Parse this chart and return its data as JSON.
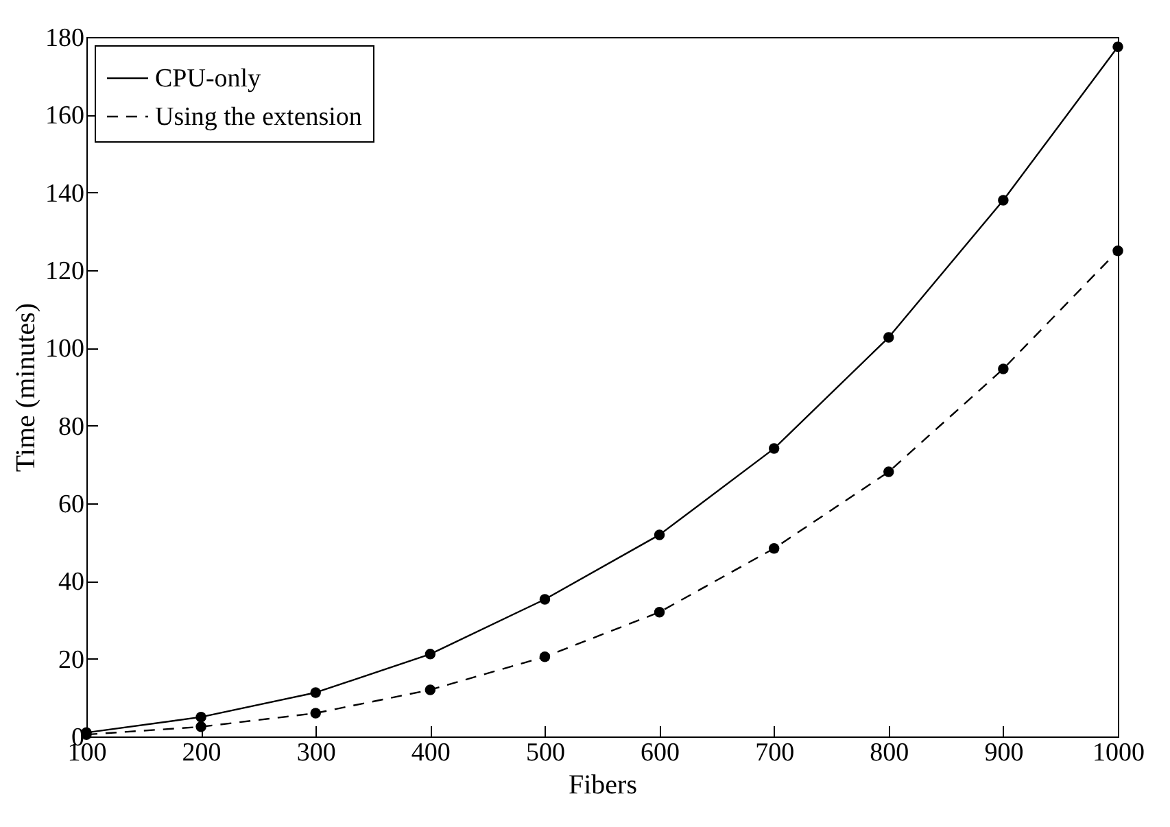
{
  "chart_data": {
    "type": "line",
    "xlabel": "Fibers",
    "ylabel": "Time (minutes)",
    "x": [
      100,
      200,
      300,
      400,
      500,
      600,
      700,
      800,
      900,
      1000
    ],
    "series": [
      {
        "name": "CPU-only",
        "color": "#000000",
        "line_style": "solid",
        "values": [
          1,
          5,
          11.3,
          21.2,
          35.3,
          51.9,
          74.1,
          102.7,
          138,
          177.5
        ]
      },
      {
        "name": "Using the extension",
        "color": "#000000",
        "line_style": "dashed",
        "values": [
          0.5,
          2.5,
          6,
          12,
          20.5,
          32,
          48.4,
          68.1,
          94.6,
          125
        ]
      }
    ],
    "xlim": [
      100,
      1000
    ],
    "ylim": [
      0,
      180
    ],
    "xticks": [
      100,
      200,
      300,
      400,
      500,
      600,
      700,
      800,
      900,
      1000
    ],
    "yticks": [
      0,
      20,
      40,
      60,
      80,
      100,
      120,
      140,
      160,
      180
    ],
    "marker": "circle",
    "legend": "top left",
    "grid": false
  }
}
